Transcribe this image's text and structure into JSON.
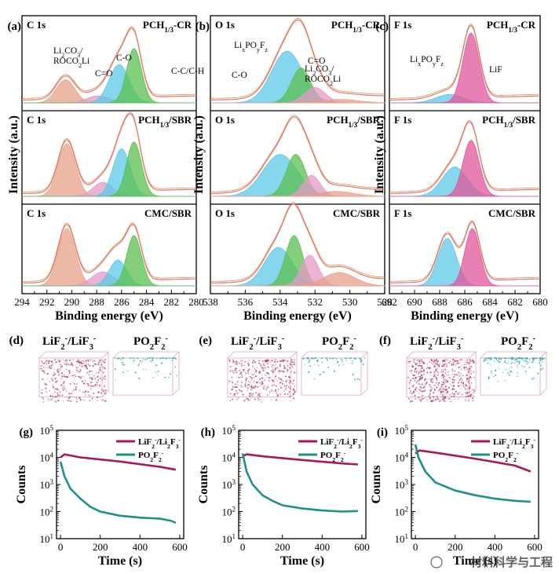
{
  "figure": {
    "xps_panels": [
      {
        "letter": "(a)",
        "element": "C 1s",
        "xlabel": "Binding energy (eV)",
        "ticks": [
          "294",
          "292",
          "290",
          "288",
          "286",
          "284",
          "282",
          "280"
        ],
        "rows": [
          {
            "sample": "PCH",
            "sub": "1/3",
            "suffix": "-CR",
            "peaks": [
              {
                "center": 290.5,
                "height": 0.33,
                "width": 0.75,
                "color": "#e8a08a"
              },
              {
                "center": 287.9,
                "height": 0.1,
                "width": 0.9,
                "color": "#e59ac7"
              },
              {
                "center": 286.2,
                "height": 0.55,
                "width": 0.8,
                "color": "#5ec8e8"
              },
              {
                "center": 285.0,
                "height": 0.78,
                "width": 0.6,
                "color": "#5bbf4f"
              }
            ],
            "labels": [
              {
                "lines": [
                  "Li2CO3/",
                  "ROCO2Li"
                ]
              },
              {
                "lines": [
                  "C=O"
                ]
              },
              {
                "lines": [
                  "C-O"
                ]
              },
              {
                "lines": [
                  "C-C/C-H"
                ]
              }
            ]
          },
          {
            "sample": "PCH",
            "sub": "1/3",
            "suffix": "/SBR",
            "peaks": [
              {
                "center": 290.4,
                "height": 0.75,
                "width": 0.7,
                "color": "#e8a08a"
              },
              {
                "center": 287.5,
                "height": 0.2,
                "width": 0.8,
                "color": "#e59ac7"
              },
              {
                "center": 286.0,
                "height": 0.68,
                "width": 0.7,
                "color": "#5ec8e8"
              },
              {
                "center": 285.0,
                "height": 0.78,
                "width": 0.6,
                "color": "#5bbf4f"
              }
            ],
            "labels": []
          },
          {
            "sample": "CMC/SBR",
            "sub": "",
            "suffix": "",
            "peaks": [
              {
                "center": 290.4,
                "height": 0.82,
                "width": 0.7,
                "color": "#e8a08a"
              },
              {
                "center": 287.5,
                "height": 0.2,
                "width": 0.9,
                "color": "#e59ac7"
              },
              {
                "center": 286.3,
                "height": 0.37,
                "width": 0.7,
                "color": "#5ec8e8"
              },
              {
                "center": 285.0,
                "height": 0.72,
                "width": 0.6,
                "color": "#5bbf4f"
              }
            ],
            "labels": []
          }
        ]
      },
      {
        "letter": "(b)",
        "element": "O 1s",
        "xlabel": "Binding energy (eV)",
        "ticks": [
          "538",
          "536",
          "534",
          "532",
          "530",
          "528"
        ],
        "rows": [
          {
            "sample": "PCH",
            "sub": "1/3",
            "suffix": "-CR",
            "peaks": [
              {
                "center": 533.6,
                "height": 0.74,
                "width": 0.9,
                "color": "#5ec8e8"
              },
              {
                "center": 532.8,
                "height": 0.5,
                "width": 0.55,
                "color": "#5bbf4f"
              },
              {
                "center": 532.0,
                "height": 0.22,
                "width": 0.6,
                "color": "#e59ac7"
              },
              {
                "center": 530.5,
                "height": 0.05,
                "width": 1.0,
                "color": "#e8a08a"
              }
            ],
            "labels": [
              {
                "lines": [
                  "LixPOyFz"
                ]
              },
              {
                "lines": [
                  "C-O"
                ]
              },
              {
                "lines": [
                  "C=O"
                ]
              },
              {
                "lines": [
                  "Li2CO3/",
                  "ROCO2Li"
                ]
              }
            ]
          },
          {
            "sample": "PCH",
            "sub": "1/3",
            "suffix": "/SBR",
            "peaks": [
              {
                "center": 534.0,
                "height": 0.6,
                "width": 1.0,
                "color": "#5ec8e8"
              },
              {
                "center": 533.1,
                "height": 0.6,
                "width": 0.55,
                "color": "#5bbf4f"
              },
              {
                "center": 532.2,
                "height": 0.3,
                "width": 0.5,
                "color": "#e59ac7"
              },
              {
                "center": 530.8,
                "height": 0.07,
                "width": 1.0,
                "color": "#e8a08a"
              }
            ],
            "labels": []
          },
          {
            "sample": "CMC/SBR",
            "sub": "",
            "suffix": "",
            "peaks": [
              {
                "center": 534.1,
                "height": 0.55,
                "width": 0.8,
                "color": "#5ec8e8"
              },
              {
                "center": 533.2,
                "height": 0.72,
                "width": 0.5,
                "color": "#5bbf4f"
              },
              {
                "center": 532.3,
                "height": 0.44,
                "width": 0.5,
                "color": "#e59ac7"
              },
              {
                "center": 530.6,
                "height": 0.19,
                "width": 0.9,
                "color": "#e8a08a"
              }
            ],
            "labels": []
          }
        ]
      },
      {
        "letter": "(c)",
        "element": "F 1s",
        "xlabel": "Binding energy (eV)",
        "ticks": [
          "692",
          "690",
          "688",
          "686",
          "684",
          "682",
          "680"
        ],
        "rows": [
          {
            "sample": "PCH",
            "sub": "1/3",
            "suffix": "-CR",
            "peaks": [
              {
                "center": 687.2,
                "height": 0.12,
                "width": 1.1,
                "color": "#5ec8e8"
              },
              {
                "center": 685.5,
                "height": 1.0,
                "width": 0.65,
                "color": "#e0559a"
              }
            ],
            "labels": [
              {
                "lines": [
                  "LixPOyFz"
                ]
              },
              {
                "lines": [
                  "LiF"
                ]
              }
            ]
          },
          {
            "sample": "PCH",
            "sub": "1/3",
            "suffix": "/SBR",
            "peaks": [
              {
                "center": 686.8,
                "height": 0.42,
                "width": 1.0,
                "color": "#5ec8e8"
              },
              {
                "center": 685.5,
                "height": 0.8,
                "width": 0.65,
                "color": "#e0559a"
              }
            ],
            "labels": []
          },
          {
            "sample": "CMC/SBR",
            "sub": "",
            "suffix": "",
            "peaks": [
              {
                "center": 687.4,
                "height": 0.68,
                "width": 0.75,
                "color": "#5ec8e8"
              },
              {
                "center": 685.4,
                "height": 0.82,
                "width": 0.6,
                "color": "#e0559a"
              }
            ],
            "labels": []
          }
        ]
      }
    ],
    "ylabel": "Intensity (a.u.)",
    "tof_panels": [
      {
        "letter": "(d)",
        "label_a": "LiF2-/LiF3-",
        "label_b": "PO2F2-",
        "density_a": 0.55,
        "density_b": 0.15
      },
      {
        "letter": "(e)",
        "label_a": "LiF2-/LiF3-",
        "label_b": "PO2F2-",
        "density_a": 0.6,
        "density_b": 0.18
      },
      {
        "letter": "(f)",
        "label_a": "LiF2-/LiF3-",
        "label_b": "PO2F2-",
        "density_a": 0.85,
        "density_b": 0.35
      }
    ],
    "depth_panels": [
      {
        "letter": "(g)",
        "xticks": [
          "0",
          "200",
          "400",
          "600"
        ],
        "ylabel": "Counts",
        "xlabel": "Time (s)",
        "legend": [
          "LiF2-/Li2F3-",
          "PO2F2-"
        ],
        "yticks": [
          {
            "base": "10",
            "exp": "1"
          },
          {
            "base": "10",
            "exp": "2"
          },
          {
            "base": "10",
            "exp": "3"
          },
          {
            "base": "10",
            "exp": "4"
          },
          {
            "base": "10",
            "exp": "5"
          }
        ],
        "series": [
          {
            "name": "LiF2-/Li2F3-",
            "color": "#a8195a",
            "points": [
              [
                0,
                10000
              ],
              [
                20,
                13000
              ],
              [
                100,
                10000
              ],
              [
                300,
                7000
              ],
              [
                500,
                4500
              ],
              [
                580,
                3500
              ]
            ]
          },
          {
            "name": "PO2F2-",
            "color": "#1f8f8a",
            "points": [
              [
                0,
                7000
              ],
              [
                20,
                2000
              ],
              [
                50,
                700
              ],
              [
                100,
                300
              ],
              [
                150,
                150
              ],
              [
                200,
                100
              ],
              [
                300,
                70
              ],
              [
                400,
                60
              ],
              [
                500,
                55
              ],
              [
                560,
                45
              ],
              [
                580,
                38
              ]
            ]
          }
        ]
      },
      {
        "letter": "(h)",
        "xticks": [
          "0",
          "200",
          "400",
          "600"
        ],
        "ylabel": "Counts",
        "xlabel": "Time (s)",
        "legend": [
          "LiF2-/Li2F3-",
          "PO2F2-"
        ],
        "yticks": [
          {
            "base": "10",
            "exp": "1"
          },
          {
            "base": "10",
            "exp": "2"
          },
          {
            "base": "10",
            "exp": "3"
          },
          {
            "base": "10",
            "exp": "4"
          },
          {
            "base": "10",
            "exp": "5"
          }
        ],
        "series": [
          {
            "name": "LiF2-/Li2F3-",
            "color": "#a8195a",
            "points": [
              [
                0,
                11000
              ],
              [
                20,
                13000
              ],
              [
                100,
                11000
              ],
              [
                300,
                8000
              ],
              [
                500,
                6000
              ],
              [
                580,
                5500
              ]
            ]
          },
          {
            "name": "PO2F2-",
            "color": "#1f8f8a",
            "points": [
              [
                0,
                14000
              ],
              [
                20,
                3000
              ],
              [
                50,
                1000
              ],
              [
                100,
                400
              ],
              [
                150,
                250
              ],
              [
                200,
                170
              ],
              [
                300,
                130
              ],
              [
                400,
                110
              ],
              [
                500,
                100
              ],
              [
                580,
                105
              ]
            ]
          }
        ]
      },
      {
        "letter": "(i)",
        "xticks": [
          "0",
          "200",
          "400",
          "600"
        ],
        "ylabel": "Counts",
        "xlabel": "Time (s)",
        "legend": [
          "LiF2-/Li2F3-",
          "PO2F2-"
        ],
        "yticks": [
          {
            "base": "10",
            "exp": "1"
          },
          {
            "base": "10",
            "exp": "2"
          },
          {
            "base": "10",
            "exp": "3"
          },
          {
            "base": "10",
            "exp": "4"
          },
          {
            "base": "10",
            "exp": "5"
          }
        ],
        "series": [
          {
            "name": "LiF2-/Li2F3-",
            "color": "#a8195a",
            "points": [
              [
                0,
                14000
              ],
              [
                20,
                18000
              ],
              [
                100,
                15000
              ],
              [
                300,
                9000
              ],
              [
                500,
                5000
              ],
              [
                580,
                3000
              ]
            ]
          },
          {
            "name": "PO2F2-",
            "color": "#1f8f8a",
            "points": [
              [
                0,
                30000
              ],
              [
                15,
                10000
              ],
              [
                50,
                3000
              ],
              [
                100,
                1200
              ],
              [
                200,
                600
              ],
              [
                300,
                400
              ],
              [
                400,
                300
              ],
              [
                500,
                250
              ],
              [
                580,
                230
              ]
            ]
          }
        ]
      }
    ],
    "watermark": "材料科学与工程"
  }
}
